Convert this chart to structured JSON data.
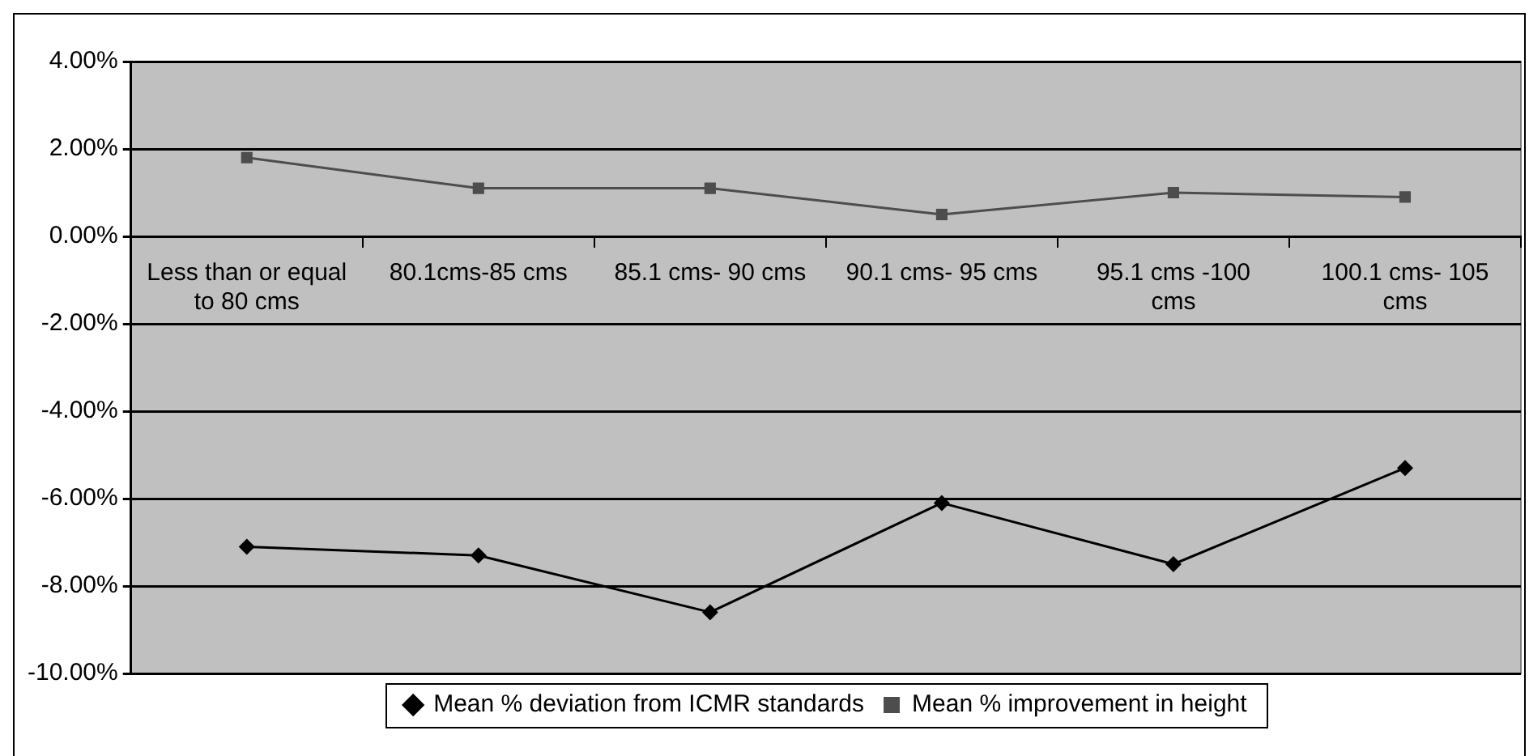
{
  "chart_data": {
    "type": "line",
    "categories": [
      "Less than or equal to 80 cms",
      "80.1cms-85 cms",
      "85.1 cms- 90 cms",
      "90.1 cms- 95 cms",
      "95.1 cms -100 cms",
      "100.1 cms- 105 cms"
    ],
    "series": [
      {
        "name": "Mean % deviation from ICMR standards",
        "color": "#000000",
        "marker": "diamond",
        "values": [
          -7.1,
          -7.3,
          -8.6,
          -6.1,
          -7.5,
          -5.3
        ]
      },
      {
        "name": "Mean % improvement in height",
        "color": "#4d4d4d",
        "marker": "square",
        "values": [
          1.8,
          1.1,
          1.1,
          0.5,
          1.0,
          0.9
        ]
      }
    ],
    "ylim": [
      -10,
      4
    ],
    "yticks": [
      {
        "value": -10,
        "label": "-10.00%"
      },
      {
        "value": -8,
        "label": "-8.00%"
      },
      {
        "value": -6,
        "label": "-6.00%"
      },
      {
        "value": -4,
        "label": "-4.00%"
      },
      {
        "value": -2,
        "label": "-2.00%"
      },
      {
        "value": 0,
        "label": "0.00%"
      },
      {
        "value": 2,
        "label": "2.00%"
      },
      {
        "value": 4,
        "label": "4.00%"
      }
    ],
    "grid": "y",
    "legend": "bottom",
    "line_style": "solid"
  }
}
